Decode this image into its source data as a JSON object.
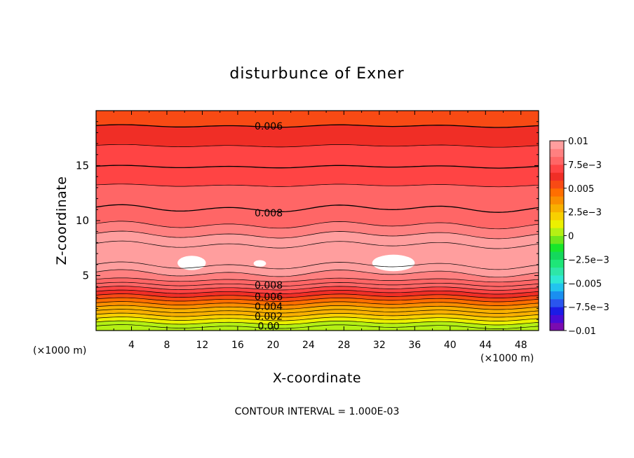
{
  "chart_data": {
    "type": "heatmap",
    "title": "disturbunce of Exner",
    "xlabel": "X-coordinate",
    "ylabel": "Z-coordinate",
    "x_unit_left": "(×1000 m)",
    "x_unit_right": "(×1000 m)",
    "xlim": [
      0,
      50
    ],
    "ylim": [
      0,
      20
    ],
    "x_ticks": [
      4,
      8,
      12,
      16,
      20,
      24,
      28,
      32,
      36,
      40,
      44,
      48
    ],
    "y_ticks": [
      5,
      10,
      15
    ],
    "footer": "CONTOUR INTERVAL = 1.000E-03",
    "colorbar": {
      "ticks": [
        {
          "v": 0.01,
          "label": "0.01"
        },
        {
          "v": 0.0075,
          "label": "7.5e−3"
        },
        {
          "v": 0.005,
          "label": "0.005"
        },
        {
          "v": 0.0025,
          "label": "2.5e−3"
        },
        {
          "v": 0,
          "label": "0"
        },
        {
          "v": -0.0025,
          "label": "−2.5e−3"
        },
        {
          "v": -0.005,
          "label": "−0.005"
        },
        {
          "v": -0.0075,
          "label": "−7.5e−3"
        },
        {
          "v": -0.01,
          "label": "−0.01"
        }
      ],
      "colors": [
        "#7a0bb0",
        "#4a0bd6",
        "#1b1be6",
        "#2a55ee",
        "#1a8ff0",
        "#22c4ee",
        "#2ee8d4",
        "#2ee6a8",
        "#1ee678",
        "#14d85c",
        "#18e62a",
        "#6ee61c",
        "#b4f014",
        "#ecf000",
        "#f8d000",
        "#f8b000",
        "#fa8e00",
        "#ff6e00",
        "#f84a14",
        "#f02e26",
        "#ff4444",
        "#ff6666",
        "#ff8080",
        "#ff9e9e"
      ],
      "vmin": -0.01,
      "vmax": 0.01
    },
    "contour_labels": [
      {
        "text": "0.006",
        "x": 19.5,
        "y": 18.6
      },
      {
        "text": "0.008",
        "x": 19.5,
        "y": 10.7
      },
      {
        "text": "0.008",
        "x": 19.5,
        "y": 4.15
      },
      {
        "text": "0.006",
        "x": 19.5,
        "y": 3.1
      },
      {
        "text": "0.004",
        "x": 19.5,
        "y": 2.2
      },
      {
        "text": "0.002",
        "x": 19.5,
        "y": 1.3
      },
      {
        "text": "0.00",
        "x": 19.5,
        "y": 0.4
      }
    ],
    "bands": [
      {
        "z0": 0.0,
        "z1": 0.35,
        "value": 0.0
      },
      {
        "z0": 0.35,
        "z1": 0.7,
        "value": 0.0006
      },
      {
        "z0": 0.7,
        "z1": 1.05,
        "value": 0.0013
      },
      {
        "z0": 1.05,
        "z1": 1.4,
        "value": 0.0019
      },
      {
        "z0": 1.4,
        "z1": 1.75,
        "value": 0.0026
      },
      {
        "z0": 1.75,
        "z1": 2.1,
        "value": 0.0033
      },
      {
        "z0": 2.1,
        "z1": 2.45,
        "value": 0.0041
      },
      {
        "z0": 2.45,
        "z1": 2.8,
        "value": 0.0048
      },
      {
        "z0": 2.8,
        "z1": 3.15,
        "value": 0.0055
      },
      {
        "z0": 3.15,
        "z1": 3.5,
        "value": 0.0062
      },
      {
        "z0": 3.5,
        "z1": 3.85,
        "value": 0.0069
      },
      {
        "z0": 3.85,
        "z1": 4.2,
        "value": 0.0076
      },
      {
        "z0": 4.2,
        "z1": 4.6,
        "value": 0.0083
      },
      {
        "z0": 4.6,
        "z1": 5.2,
        "value": 0.0089
      },
      {
        "z0": 5.2,
        "z1": 5.9,
        "value": 0.0094
      },
      {
        "z0": 5.9,
        "z1": 7.8,
        "value": 0.0098
      },
      {
        "z0": 7.8,
        "z1": 8.7,
        "value": 0.0093
      },
      {
        "z0": 8.7,
        "z1": 9.6,
        "value": 0.0088
      },
      {
        "z0": 9.6,
        "z1": 11.1,
        "value": 0.0083
      },
      {
        "z0": 11.1,
        "z1": 13.2,
        "value": 0.0078
      },
      {
        "z0": 13.2,
        "z1": 14.9,
        "value": 0.0073
      },
      {
        "z0": 14.9,
        "z1": 16.8,
        "value": 0.0068
      },
      {
        "z0": 16.8,
        "z1": 18.6,
        "value": 0.0063
      },
      {
        "z0": 18.6,
        "z1": 20.0,
        "value": 0.0058
      }
    ],
    "maxima_regions": [
      {
        "x": 10.8,
        "y": 6.15,
        "rx": 1.6,
        "ry": 0.65
      },
      {
        "x": 18.5,
        "y": 6.1,
        "rx": 0.7,
        "ry": 0.3
      },
      {
        "x": 33.6,
        "y": 6.15,
        "rx": 2.4,
        "ry": 0.75
      }
    ]
  }
}
